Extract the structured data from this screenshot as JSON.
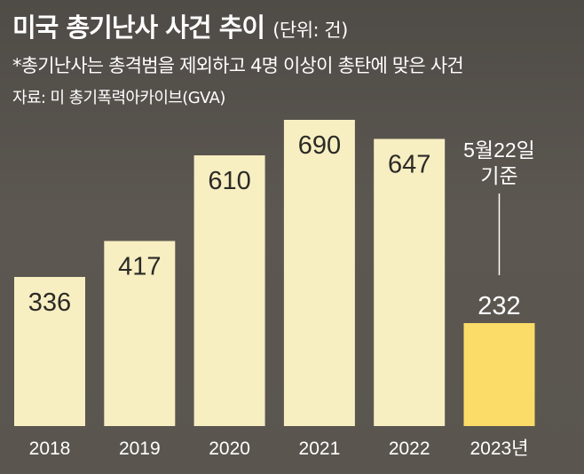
{
  "header": {
    "title": "미국 총기난사 사건 추이",
    "unit": "(단위: 건)",
    "note": "*총기난사는 총격범을 제외하고 4명 이상이 총탄에 맞은 사건",
    "source": "자료: 미 총기폭력아카이브(GVA)"
  },
  "colors": {
    "bar": "#f7eec2",
    "highlight": "#fcdc68",
    "leader": "#ffffff"
  },
  "chart_data": {
    "type": "bar",
    "title": "미국 총기난사 사건 추이",
    "ylabel": "건",
    "xlabel": "",
    "ylim": [
      0,
      690
    ],
    "grid": false,
    "categories": [
      "2018",
      "2019",
      "2020",
      "2021",
      "2022",
      "2023년"
    ],
    "values": [
      336,
      417,
      610,
      690,
      647,
      232
    ],
    "highlight_index": 5,
    "annotation": {
      "index": 5,
      "lines": [
        "5월22일",
        "기준"
      ]
    }
  }
}
